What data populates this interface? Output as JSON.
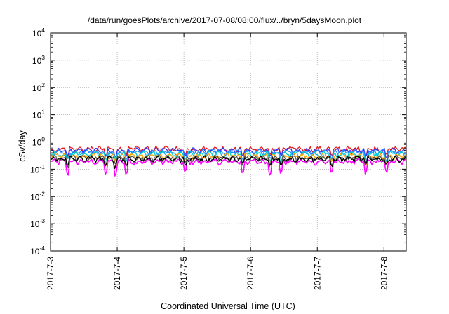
{
  "chart_data": {
    "type": "line",
    "title": "/data/run/goesPlots/archive/2017-07-08/08:00/flux/../bryn/5daysMoon.plot",
    "xlabel": "Coordinated Universal Time (UTC)",
    "ylabel": "cSv/day",
    "yscale": "log",
    "ylim": [
      0.0001,
      10000
    ],
    "xlim": [
      "2017-07-03 00:00",
      "2017-07-08 08:00"
    ],
    "grid": true,
    "x_ticks": [
      "2017-7-3",
      "2017-7-4",
      "2017-7-5",
      "2017-7-6",
      "2017-7-7",
      "2017-7-8"
    ],
    "y_ticks": [
      {
        "base": "10",
        "exp": "-4",
        "value": 0.0001
      },
      {
        "base": "10",
        "exp": "-3",
        "value": 0.001
      },
      {
        "base": "10",
        "exp": "-2",
        "value": 0.01
      },
      {
        "base": "10",
        "exp": "-1",
        "value": 0.1
      },
      {
        "base": "10",
        "exp": "0",
        "value": 1
      },
      {
        "base": "10",
        "exp": "1",
        "value": 10
      },
      {
        "base": "10",
        "exp": "2",
        "value": 100
      },
      {
        "base": "10",
        "exp": "3",
        "value": 1000
      },
      {
        "base": "10",
        "exp": "4",
        "value": 10000
      }
    ],
    "series": [
      {
        "color": "#ff00ff",
        "base": 0.19,
        "dips": true
      },
      {
        "color": "#e41a1c",
        "base": 0.55
      },
      {
        "color": "#3333ff",
        "base": 0.48
      },
      {
        "color": "#1e90ff",
        "base": 0.42
      },
      {
        "color": "#00ced1",
        "base": 0.36
      },
      {
        "color": "#ffa500",
        "base": 0.3
      },
      {
        "color": "#555555",
        "base": 0.26
      },
      {
        "color": "#000000",
        "base": 0.24
      }
    ]
  }
}
